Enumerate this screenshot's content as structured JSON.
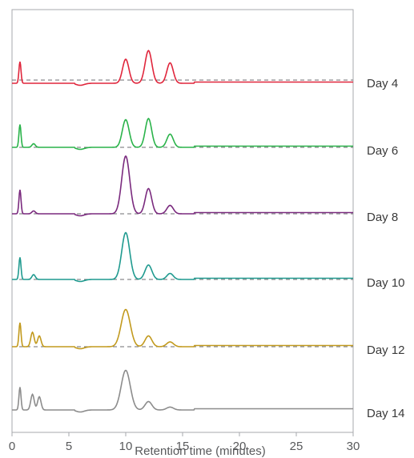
{
  "chart_data": {
    "type": "line",
    "title": "",
    "xlabel": "Retention time (minutes)",
    "ylabel": "",
    "xlim": [
      0,
      30
    ],
    "xticks": [
      0,
      5,
      10,
      15,
      20,
      25,
      30
    ],
    "grid": false,
    "legend": "none",
    "offset_traces": true,
    "series": [
      {
        "name": "Day 4",
        "color": "#e0263c",
        "peaks": [
          [
            0.7,
            0.9,
            0.09
          ],
          [
            10.0,
            1.0,
            0.28
          ],
          [
            12.0,
            1.36,
            0.3
          ],
          [
            13.9,
            0.85,
            0.28
          ]
        ],
        "baseline_dashed": true
      },
      {
        "name": "Day 6",
        "color": "#2ab34a",
        "peaks": [
          [
            0.7,
            0.95,
            0.09
          ],
          [
            1.9,
            0.15,
            0.15
          ],
          [
            10.0,
            1.15,
            0.3
          ],
          [
            12.0,
            1.2,
            0.28
          ],
          [
            13.9,
            0.55,
            0.28
          ]
        ],
        "baseline_dashed": true
      },
      {
        "name": "Day 8",
        "color": "#7a2a7e",
        "peaks": [
          [
            0.7,
            1.0,
            0.09
          ],
          [
            1.9,
            0.12,
            0.15
          ],
          [
            10.0,
            2.4,
            0.35
          ],
          [
            12.0,
            1.05,
            0.28
          ],
          [
            13.9,
            0.35,
            0.28
          ]
        ],
        "baseline_dashed": true
      },
      {
        "name": "Day 10",
        "color": "#1f9a8f",
        "peaks": [
          [
            0.7,
            0.92,
            0.09
          ],
          [
            1.9,
            0.2,
            0.15
          ],
          [
            10.0,
            1.95,
            0.35
          ],
          [
            12.0,
            0.6,
            0.3
          ],
          [
            13.9,
            0.25,
            0.28
          ]
        ],
        "baseline_dashed": true
      },
      {
        "name": "Day 12",
        "color": "#c29a1e",
        "peaks": [
          [
            0.7,
            1.0,
            0.09
          ],
          [
            1.8,
            0.6,
            0.15
          ],
          [
            2.4,
            0.45,
            0.15
          ],
          [
            10.0,
            1.55,
            0.4
          ],
          [
            12.0,
            0.45,
            0.3
          ],
          [
            13.9,
            0.2,
            0.3
          ]
        ],
        "baseline_dashed": true
      },
      {
        "name": "Day 14",
        "color": "#8c8c8c",
        "peaks": [
          [
            0.7,
            0.95,
            0.09
          ],
          [
            1.8,
            0.65,
            0.15
          ],
          [
            2.4,
            0.55,
            0.15
          ],
          [
            10.0,
            1.65,
            0.4
          ],
          [
            12.0,
            0.35,
            0.3
          ],
          [
            13.9,
            0.12,
            0.3
          ]
        ],
        "baseline_dashed": false
      }
    ]
  }
}
